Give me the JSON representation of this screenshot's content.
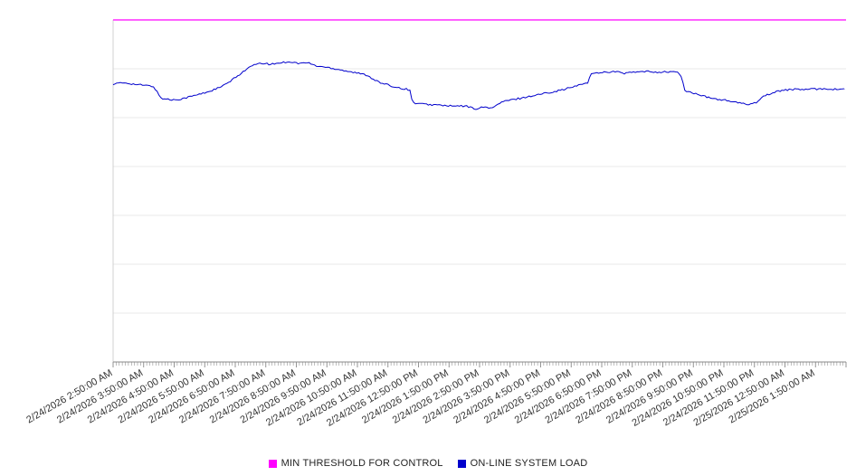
{
  "legend": {
    "items": [
      {
        "label": "MIN THRESHOLD FOR CONTROL",
        "color": "#ff00ff"
      },
      {
        "label": "ON-LINE SYSTEM LOAD",
        "color": "#0000cc"
      }
    ]
  },
  "chart_data": {
    "type": "line",
    "title": "",
    "xlabel": "",
    "ylabel": "",
    "categories": [
      "2/24/2026 2:50:00 AM",
      "2/24/2026 3:50:00 AM",
      "2/24/2026 4:50:00 AM",
      "2/24/2026 5:50:00 AM",
      "2/24/2026 6:50:00 AM",
      "2/24/2026 7:50:00 AM",
      "2/24/2026 8:50:00 AM",
      "2/24/2026 9:50:00 AM",
      "2/24/2026 10:50:00 AM",
      "2/24/2026 11:50:00 AM",
      "2/24/2026 12:50:00 PM",
      "2/24/2026 1:50:00 PM",
      "2/24/2026 2:50:00 PM",
      "2/24/2026 3:50:00 PM",
      "2/24/2026 4:50:00 PM",
      "2/24/2026 5:50:00 PM",
      "2/24/2026 6:50:00 PM",
      "2/24/2026 7:50:00 PM",
      "2/24/2026 8:50:00 PM",
      "2/24/2026 9:50:00 PM",
      "2/24/2026 10:50:00 PM",
      "2/24/2026 11:50:00 PM",
      "2/25/2026 12:50:00 AM",
      "2/25/2026 1:50:00 AM"
    ],
    "x_range_hours": [
      0,
      24
    ],
    "x_note": "x in hours elapsed since 2/24/2026 2:50:00 AM; labels hourly; minor ticks every 6 minutes",
    "ylim": [
      0,
      100
    ],
    "y_axis_labels": "none visible",
    "grid": "horizontal gridlines, 7 equal intervals",
    "legend_position": "bottom-center",
    "series": [
      {
        "name": "MIN THRESHOLD FOR CONTROL",
        "color": "#ff00ff",
        "type": "constant",
        "value": 100
      },
      {
        "name": "ON-LINE SYSTEM LOAD",
        "color": "#0000cc",
        "type": "line",
        "points": [
          [
            0.0,
            81.3
          ],
          [
            0.22,
            81.5
          ],
          [
            0.44,
            81.6
          ],
          [
            0.67,
            81.2
          ],
          [
            0.89,
            81.0
          ],
          [
            1.11,
            80.8
          ],
          [
            1.33,
            80.5
          ],
          [
            1.45,
            78.8
          ],
          [
            1.57,
            77.1
          ],
          [
            1.78,
            76.8
          ],
          [
            1.93,
            76.6
          ],
          [
            2.22,
            76.9
          ],
          [
            2.45,
            77.4
          ],
          [
            2.67,
            77.9
          ],
          [
            2.89,
            78.4
          ],
          [
            3.11,
            79.0
          ],
          [
            3.33,
            79.7
          ],
          [
            3.56,
            80.5
          ],
          [
            3.78,
            81.7
          ],
          [
            4.0,
            83.1
          ],
          [
            4.3,
            85.2
          ],
          [
            4.59,
            86.8
          ],
          [
            4.89,
            87.3
          ],
          [
            5.19,
            87.0
          ],
          [
            5.48,
            87.5
          ],
          [
            5.78,
            87.8
          ],
          [
            6.07,
            87.3
          ],
          [
            6.37,
            87.5
          ],
          [
            6.67,
            86.5
          ],
          [
            6.96,
            86.2
          ],
          [
            7.41,
            85.5
          ],
          [
            7.85,
            84.7
          ],
          [
            8.3,
            83.9
          ],
          [
            8.74,
            81.6
          ],
          [
            9.19,
            80.5
          ],
          [
            9.63,
            79.7
          ],
          [
            9.72,
            79.5
          ],
          [
            9.8,
            75.8
          ],
          [
            10.22,
            75.3
          ],
          [
            10.67,
            75.1
          ],
          [
            11.11,
            74.8
          ],
          [
            11.56,
            74.8
          ],
          [
            11.85,
            74.0
          ],
          [
            12.15,
            74.5
          ],
          [
            12.44,
            74.3
          ],
          [
            12.74,
            76.1
          ],
          [
            13.04,
            76.6
          ],
          [
            13.33,
            77.1
          ],
          [
            13.78,
            77.9
          ],
          [
            14.22,
            78.7
          ],
          [
            14.67,
            79.5
          ],
          [
            15.11,
            80.5
          ],
          [
            15.56,
            81.8
          ],
          [
            15.64,
            84.2
          ],
          [
            16.0,
            84.7
          ],
          [
            16.44,
            84.9
          ],
          [
            16.74,
            84.4
          ],
          [
            17.04,
            84.7
          ],
          [
            17.48,
            84.9
          ],
          [
            17.93,
            84.7
          ],
          [
            18.37,
            84.9
          ],
          [
            18.58,
            84.2
          ],
          [
            18.73,
            79.2
          ],
          [
            18.96,
            78.7
          ],
          [
            19.26,
            77.9
          ],
          [
            19.56,
            77.1
          ],
          [
            20.0,
            76.6
          ],
          [
            20.44,
            75.8
          ],
          [
            20.74,
            75.3
          ],
          [
            21.04,
            75.8
          ],
          [
            21.33,
            77.9
          ],
          [
            21.63,
            78.7
          ],
          [
            21.93,
            79.5
          ],
          [
            22.37,
            79.7
          ],
          [
            22.81,
            79.7
          ],
          [
            23.26,
            79.9
          ],
          [
            23.7,
            79.7
          ],
          [
            23.94,
            79.9
          ]
        ]
      }
    ],
    "style": {
      "gridline_color": "#e8e8e8",
      "axis_color": "#888888",
      "left_axis_color": "#d0d0d0",
      "tick_label_color": "#333333",
      "tick_label_rotation_deg": -30
    }
  }
}
